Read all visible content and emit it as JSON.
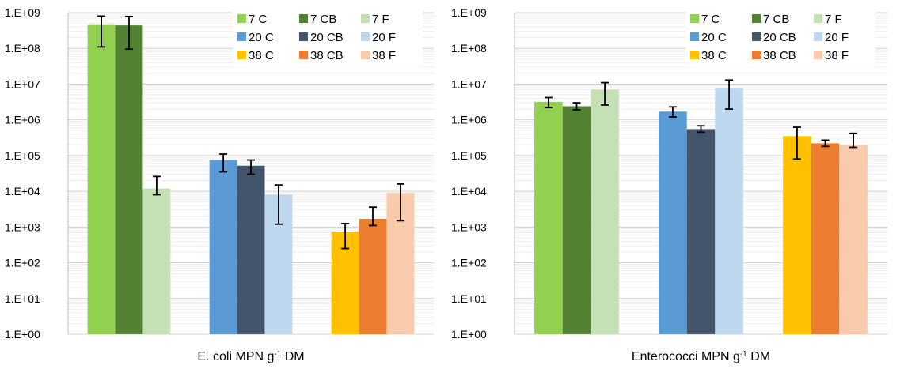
{
  "chart_data": [
    {
      "type": "bar",
      "log_scale": true,
      "ylim": [
        1,
        1000000000
      ],
      "ytick_labels": [
        "1.E+00",
        "1.E+01",
        "1.E+02",
        "1.E+03",
        "1.E+04",
        "1.E+05",
        "1.E+06",
        "1.E+07",
        "1.E+08",
        "1.E+09"
      ],
      "xlabel": {
        "main": "E. coli MPN g",
        "sup": "-1",
        "tail": " DM"
      },
      "grid": true,
      "legend_position": "top-right",
      "groups": [
        {
          "bars": [
            {
              "name": "7 C",
              "color": "#92d050",
              "value": 450000000,
              "err_low": 110000000,
              "err_high": 800000000
            },
            {
              "name": "7 CB",
              "color": "#548235",
              "value": 440000000,
              "err_low": 95000000,
              "err_high": 780000000
            },
            {
              "name": "7 F",
              "color": "#c5e0b4",
              "value": 12000,
              "err_low": 8000,
              "err_high": 26000
            }
          ]
        },
        {
          "bars": [
            {
              "name": "20 C",
              "color": "#5b9bd5",
              "value": 75000,
              "err_low": 35000,
              "err_high": 110000
            },
            {
              "name": "20 CB",
              "color": "#44546a",
              "value": 52000,
              "err_low": 30000,
              "err_high": 75000
            },
            {
              "name": "20 F",
              "color": "#bdd7ee",
              "value": 8000,
              "err_low": 1200,
              "err_high": 15000
            }
          ]
        },
        {
          "bars": [
            {
              "name": "38 C",
              "color": "#ffc000",
              "value": 750,
              "err_low": 250,
              "err_high": 1250
            },
            {
              "name": "38 CB",
              "color": "#ed7d31",
              "value": 1700,
              "err_low": 1100,
              "err_high": 3600
            },
            {
              "name": "38 F",
              "color": "#f8cbad",
              "value": 9000,
              "err_low": 1500,
              "err_high": 16000
            }
          ]
        }
      ]
    },
    {
      "type": "bar",
      "log_scale": true,
      "ylim": [
        1,
        1000000000
      ],
      "ytick_labels": [
        "1.E+00",
        "1.E+01",
        "1.E+02",
        "1.E+03",
        "1.E+04",
        "1.E+05",
        "1.E+06",
        "1.E+07",
        "1.E+08",
        "1.E+09"
      ],
      "xlabel": {
        "main": "Enterococci MPN g",
        "sup": "-1",
        "tail": " DM"
      },
      "grid": true,
      "legend_position": "top-right",
      "groups": [
        {
          "bars": [
            {
              "name": "7 C",
              "color": "#92d050",
              "value": 3200000,
              "err_low": 2200000,
              "err_high": 4200000
            },
            {
              "name": "7 CB",
              "color": "#548235",
              "value": 2400000,
              "err_low": 1900000,
              "err_high": 3000000
            },
            {
              "name": "7 F",
              "color": "#c5e0b4",
              "value": 7000000,
              "err_low": 2600000,
              "err_high": 11000000
            }
          ]
        },
        {
          "bars": [
            {
              "name": "20 C",
              "color": "#5b9bd5",
              "value": 1700000,
              "err_low": 1200000,
              "err_high": 2300000
            },
            {
              "name": "20 CB",
              "color": "#44546a",
              "value": 550000,
              "err_low": 450000,
              "err_high": 680000
            },
            {
              "name": "20 F",
              "color": "#bdd7ee",
              "value": 7500000,
              "err_low": 2000000,
              "err_high": 13000000
            }
          ]
        },
        {
          "bars": [
            {
              "name": "38 C",
              "color": "#ffc000",
              "value": 350000,
              "err_low": 80000,
              "err_high": 620000
            },
            {
              "name": "38 CB",
              "color": "#ed7d31",
              "value": 220000,
              "err_low": 180000,
              "err_high": 270000
            },
            {
              "name": "38 F",
              "color": "#f8cbad",
              "value": 200000,
              "err_low": 170000,
              "err_high": 420000
            }
          ]
        }
      ]
    }
  ]
}
